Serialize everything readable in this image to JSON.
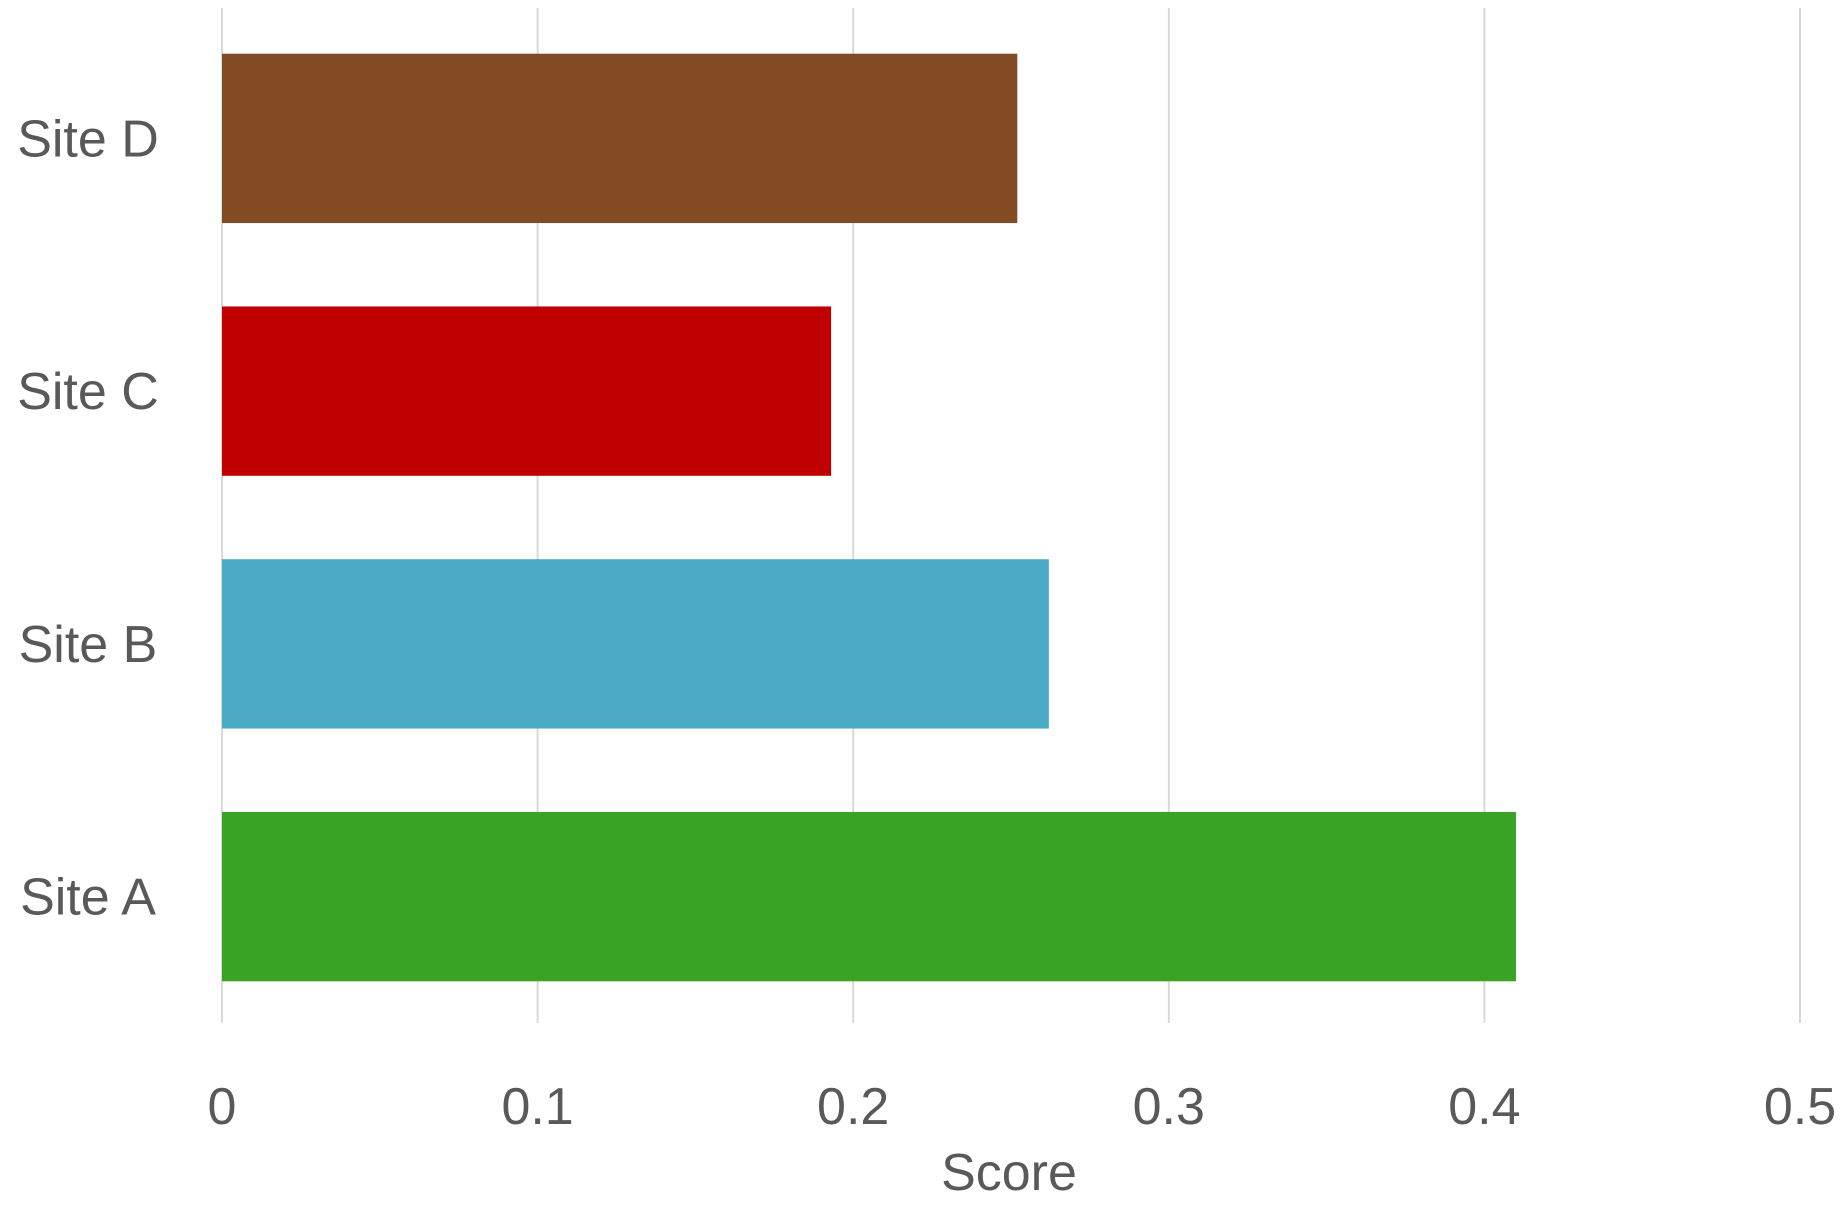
{
  "chart_data": {
    "type": "bar",
    "orientation": "horizontal",
    "categories": [
      "Site A",
      "Site B",
      "Site C",
      "Site D"
    ],
    "values": [
      0.41,
      0.262,
      0.193,
      0.252
    ],
    "colors": [
      "#3aa325",
      "#4babc6",
      "#c00000",
      "#834b24"
    ],
    "xlabel": "Score",
    "ylabel": "",
    "xlim": [
      0,
      0.5
    ],
    "xticks": [
      "0",
      "0.1",
      "0.2",
      "0.3",
      "0.4",
      "0.5"
    ],
    "grid": "vertical",
    "legend": "none"
  }
}
